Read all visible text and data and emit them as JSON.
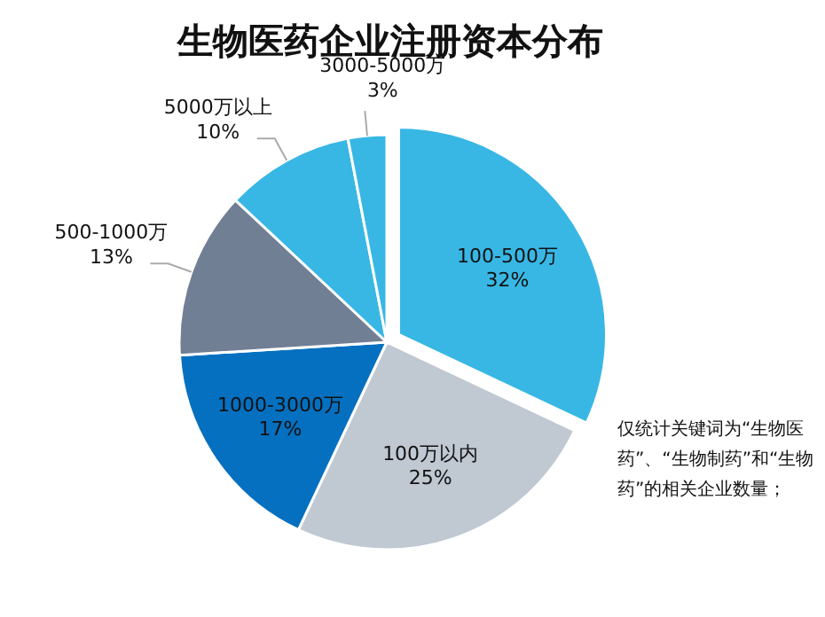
{
  "chart_data": {
    "type": "pie",
    "title": "生物医药企业注册资本分布",
    "categories": [
      "100-500万",
      "100万以内",
      "1000-3000万",
      "500-1000万",
      "5000万以上",
      "3000-5000万"
    ],
    "values": [
      32,
      25,
      17,
      13,
      10,
      3
    ],
    "colors": [
      "#38b7e5",
      "#c0c8d2",
      "#0670c0",
      "#717f95",
      "#38b7e5",
      "#38b7e5"
    ],
    "value_labels": [
      "32%",
      "25%",
      "17%",
      "13%",
      "10%",
      "3%"
    ],
    "annotations": [
      "仅统计关键词为“生物医药”、“生物制药”和“生物药”的相关企业数量；"
    ]
  }
}
